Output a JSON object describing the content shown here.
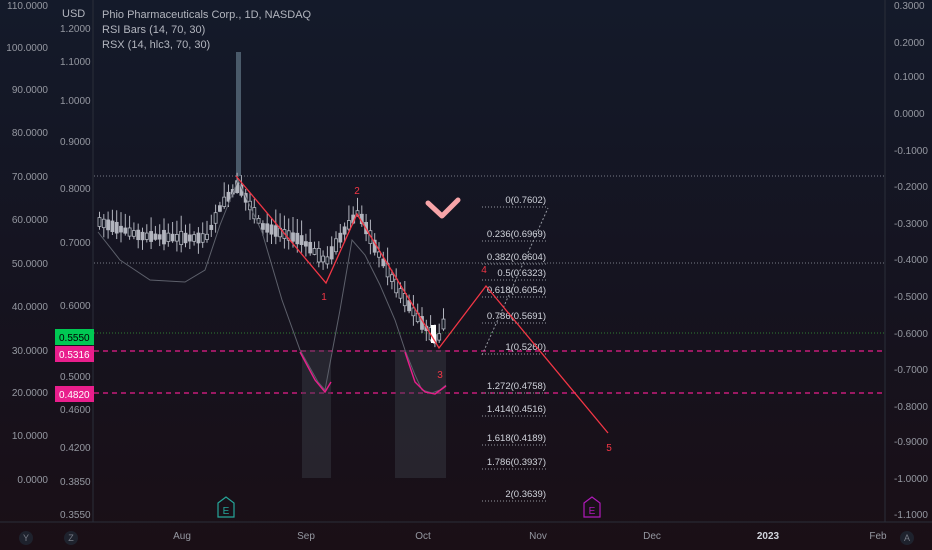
{
  "header": {
    "currency": "USD",
    "title": "Phio Pharmaceuticals Corp., 1D, NASDAQ",
    "indicators": [
      "RSI Bars (14, 70, 30)",
      "RSX (14, hlc3, 70, 30)"
    ]
  },
  "chart_data": {
    "type": "candlestick",
    "left_axis_outer": {
      "ticks": [
        "110.0000",
        "100.0000",
        "90.0000",
        "80.0000",
        "70.0000",
        "60.0000",
        "50.0000",
        "40.0000",
        "30.0000",
        "20.0000",
        "10.0000",
        "0.0000"
      ]
    },
    "left_axis_price": {
      "ticks": [
        "1.2000",
        "1.1000",
        "1.0000",
        "0.9000",
        "0.8000",
        "0.7000",
        "0.6000",
        "0.5000",
        "0.4600",
        "0.4200",
        "0.3850",
        "0.3550"
      ]
    },
    "right_axis": {
      "ticks": [
        "0.3000",
        "0.2000",
        "0.1000",
        "0.0000",
        "-0.1000",
        "-0.2000",
        "-0.3000",
        "-0.4000",
        "-0.5000",
        "-0.6000",
        "-0.7000",
        "-0.8000",
        "-0.9000",
        "-1.0000",
        "-1.1000"
      ]
    },
    "x_axis": {
      "ticks": [
        "Aug",
        "Sep",
        "Oct",
        "Nov",
        "Dec",
        "2023",
        "Feb"
      ]
    },
    "price_badges": [
      {
        "label": "0.5550",
        "color": "#00c853"
      },
      {
        "label": "0.5316",
        "color": "#e91e8c"
      },
      {
        "label": "0.4820",
        "color": "#e91e8c"
      }
    ],
    "fib_levels": [
      "0(0.7602)",
      "0.236(0.6969)",
      "0.382(0.6604)",
      "0.5(0.6323)",
      "0.618(0.6054)",
      "0.786(0.5691)",
      "1(0.5260)",
      "1.272(0.4758)",
      "1.414(0.4516)",
      "1.618(0.4189)",
      "1.786(0.3937)",
      "2(0.3639)"
    ],
    "wave_labels": [
      "1",
      "2",
      "3",
      "4",
      "5"
    ],
    "event_markers": [
      {
        "label": "E",
        "color": "#26a69a"
      },
      {
        "label": "E",
        "color": "#b01aba"
      }
    ],
    "bottom_controls": [
      "Y",
      "Z",
      "A"
    ],
    "colors": {
      "wave": "#f23645",
      "candle": "#b2b5be",
      "rsx": "#5d606b",
      "zone": "#3a3d47",
      "fib": "#9598a1",
      "badge_green": "#00c853",
      "badge_pink": "#e91e8c",
      "chevron": "#f7a4a8"
    }
  }
}
